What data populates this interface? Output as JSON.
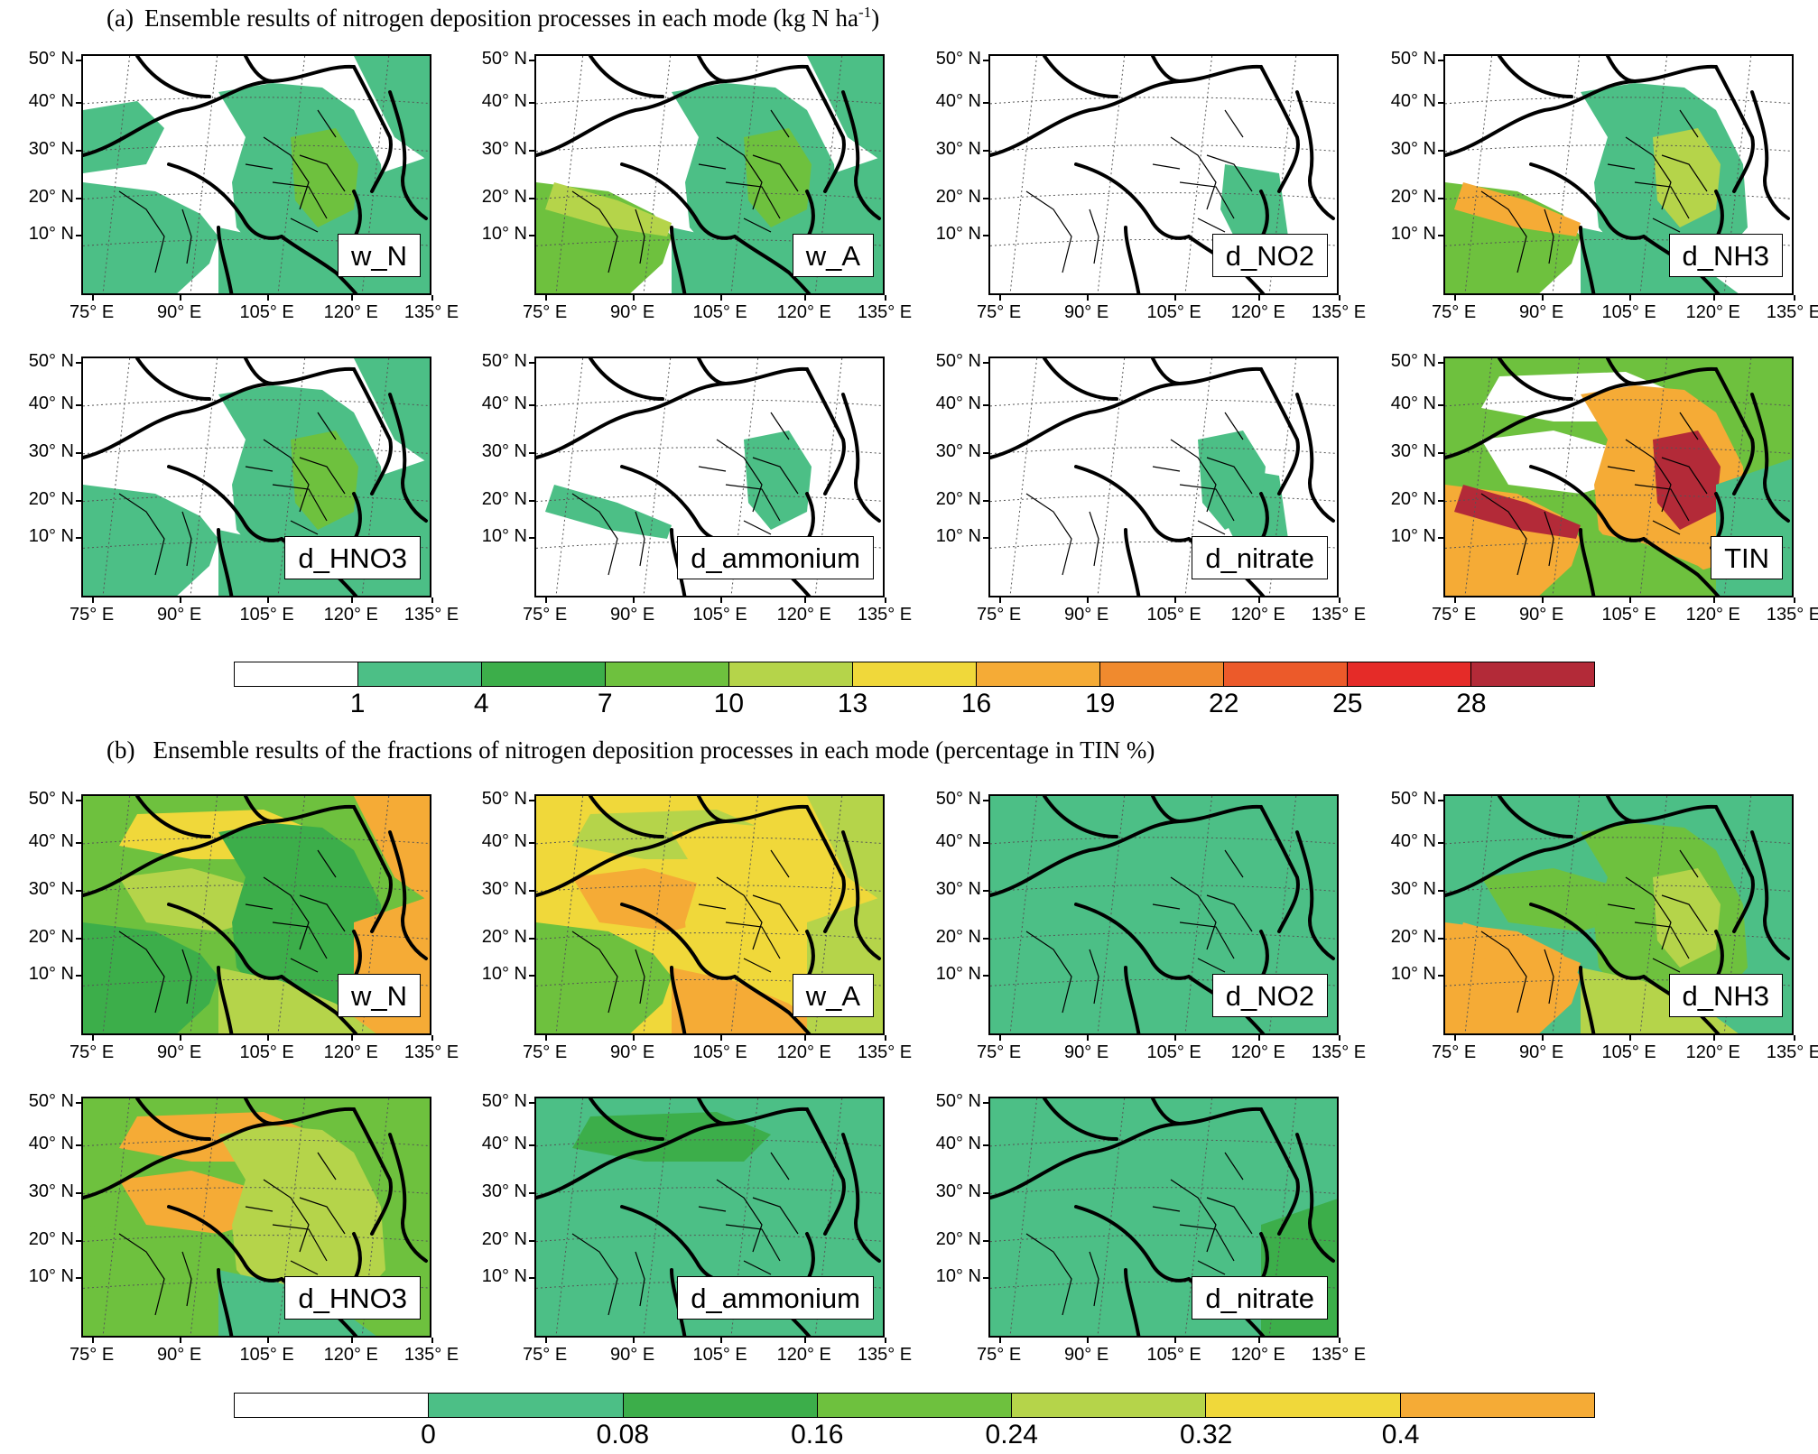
{
  "section_a": {
    "part": "(a)",
    "title": "Ensemble results of nitrogen deposition processes in each mode (kg N ha",
    "unit_sup": "-1",
    "unit_close": ")",
    "panels": [
      "w_N",
      "w_A",
      "d_NO2",
      "d_NH3",
      "d_HNO3",
      "d_ammonium",
      "d_nitrate",
      "TIN"
    ],
    "colorbar": {
      "labels": [
        "1",
        "4",
        "7",
        "10",
        "13",
        "16",
        "19",
        "22",
        "25",
        "28"
      ],
      "colors": [
        "#ffffff",
        "#4cbf86",
        "#3cae4a",
        "#6ec13e",
        "#b5d44a",
        "#f0d83a",
        "#f5ab36",
        "#f08a2e",
        "#ec5a2a",
        "#e52b28",
        "#b32a38"
      ]
    }
  },
  "section_b": {
    "part": "(b)",
    "title": "Ensemble results of the fractions of nitrogen deposition processes in each mode (percentage in TIN %)",
    "panels": [
      "w_N",
      "w_A",
      "d_NO2",
      "d_NH3",
      "d_HNO3",
      "d_ammonium",
      "d_nitrate"
    ],
    "colorbar": {
      "labels": [
        "0",
        "0.08",
        "0.16",
        "0.24",
        "0.32",
        "0.4"
      ],
      "colors": [
        "#ffffff",
        "#4cbf86",
        "#3cae4a",
        "#6ec13e",
        "#b5d44a",
        "#f0d83a",
        "#f5ab36"
      ]
    }
  },
  "axes": {
    "lat_labels": [
      "50° N",
      "40° N",
      "30° N",
      "20° N",
      "10° N"
    ],
    "lon_labels": [
      "75° E",
      "90° E",
      "105° E",
      "120° E",
      "135° E"
    ]
  }
}
